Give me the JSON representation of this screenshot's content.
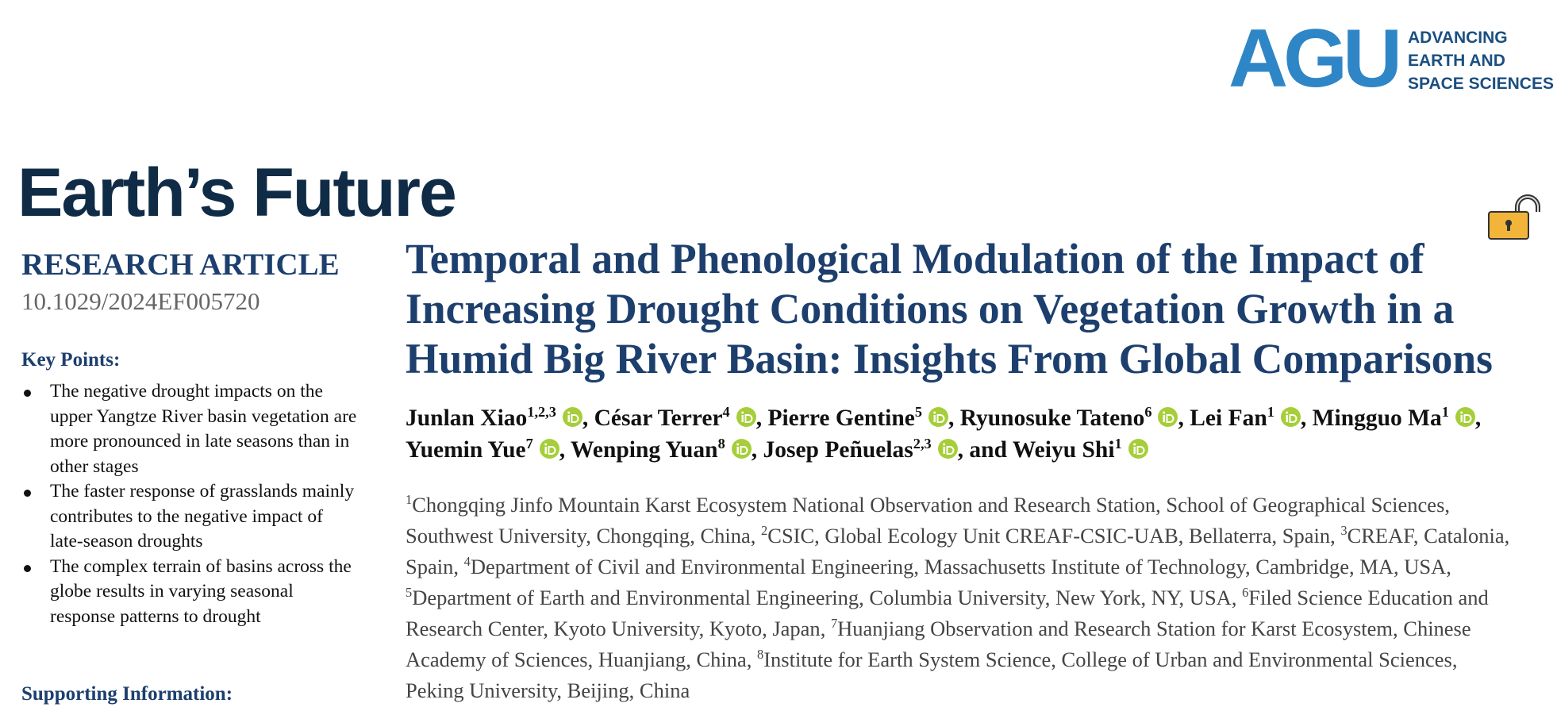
{
  "header": {
    "logo": {
      "mark": "AGU",
      "tagline": [
        "ADVANCING",
        "EARTH AND",
        "SPACE SCIENCES"
      ]
    },
    "journal": "Earth’s Future"
  },
  "sidebar": {
    "article_type": "RESEARCH ARTICLE",
    "doi": "10.1029/2024EF005720",
    "key_points_heading": "Key Points:",
    "key_points": [
      "The negative drought impacts on the upper Yangtze River basin vegetation are more pronounced in late seasons than in other stages",
      "The faster response of grasslands mainly contributes to the negative impact of late-season droughts",
      "The complex terrain of basins across the globe results in varying seasonal response patterns to drought"
    ],
    "supporting_heading": "Supporting Information:"
  },
  "article": {
    "title": "Temporal and Phenological Modulation of the Impact of Increasing Drought Conditions on Vegetation Growth in a Humid Big River Basin: Insights From Global Comparisons",
    "authors": [
      {
        "name": "Junlan Xiao",
        "affiliations": "1,2,3"
      },
      {
        "prefix": ", ",
        "name": "César Terrer",
        "affiliations": "4"
      },
      {
        "prefix": ", ",
        "name": "Pierre Gentine",
        "affiliations": "5"
      },
      {
        "prefix": ", ",
        "name": "Ryunosuke Tateno",
        "affiliations": "6"
      },
      {
        "prefix": ", ",
        "name": "Lei Fan",
        "affiliations": "1"
      },
      {
        "prefix": ", ",
        "name": "Mingguo Ma",
        "affiliations": "1"
      },
      {
        "prefix": ", ",
        "name": "Yuemin Yue",
        "affiliations": "7"
      },
      {
        "prefix": ", ",
        "name": "Wenping Yuan",
        "affiliations": "8"
      },
      {
        "prefix": ", ",
        "name": "Josep Peñuelas",
        "affiliations": "2,3"
      },
      {
        "prefix": ", and ",
        "name": "Weiyu Shi",
        "affiliations": "1"
      }
    ],
    "affiliations": [
      {
        "number": "1",
        "text": "Chongqing Jinfo Mountain Karst Ecosystem National Observation and Research Station, School of Geographical Sciences, Southwest University, Chongqing, China",
        "separator": ", "
      },
      {
        "number": "2",
        "text": "CSIC, Global Ecology Unit CREAF-CSIC-UAB, Bellaterra, Spain",
        "separator": ", "
      },
      {
        "number": "3",
        "text": "CREAF, Catalonia, Spain",
        "separator": ", "
      },
      {
        "number": "4",
        "text": "Department of Civil and Environmental Engineering, Massachusetts Institute of Technology, Cambridge, MA, USA",
        "separator": ", "
      },
      {
        "number": "5",
        "text": "Department of Earth and Environmental Engineering, Columbia University, New York, NY, USA",
        "separator": ", "
      },
      {
        "number": "6",
        "text": "Filed Science Education and Research Center, Kyoto University, Kyoto, Japan",
        "separator": ", "
      },
      {
        "number": "7",
        "text": "Huanjiang Observation and Research Station for Karst Ecosystem, Chinese Academy of Sciences, Huanjiang, China",
        "separator": ", "
      },
      {
        "number": "8",
        "text": "Institute for Earth System Science, College of Urban and Environmental Sciences, Peking University, Beijing, China"
      }
    ]
  }
}
